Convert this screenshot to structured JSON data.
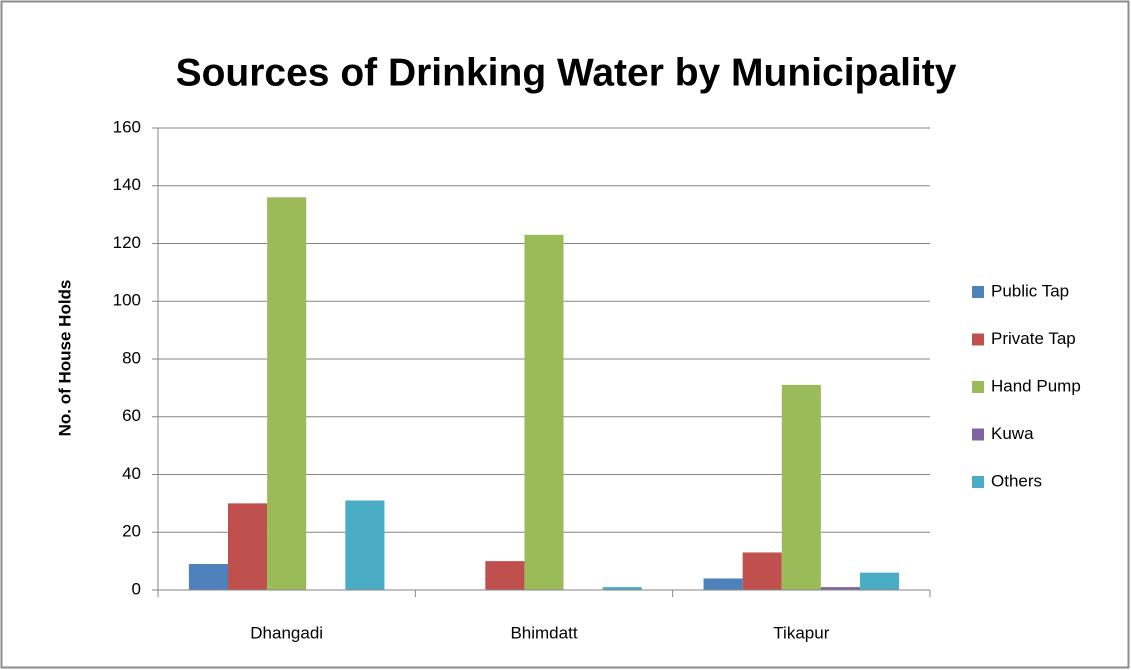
{
  "chart_data": {
    "type": "bar",
    "title": "Sources of Drinking Water by Municipality",
    "y_label": "No. of House Holds",
    "categories": [
      "Dhangadi",
      "Bhimdatt",
      "Tikapur"
    ],
    "series": [
      {
        "name": "Public Tap",
        "color": "#4f81bd",
        "values": [
          9,
          0,
          4
        ]
      },
      {
        "name": "Private Tap",
        "color": "#c0504d",
        "values": [
          30,
          10,
          13
        ]
      },
      {
        "name": "Hand Pump",
        "color": "#9bbb59",
        "values": [
          136,
          123,
          71
        ]
      },
      {
        "name": "Kuwa",
        "color": "#8064a2",
        "values": [
          0,
          0,
          1
        ]
      },
      {
        "name": "Others",
        "color": "#4bacc6",
        "values": [
          31,
          1,
          6
        ]
      }
    ],
    "ylim": [
      0,
      160
    ],
    "yticks": [
      0,
      20,
      40,
      60,
      80,
      100,
      120,
      140,
      160
    ],
    "grid": true,
    "legend": "right"
  }
}
